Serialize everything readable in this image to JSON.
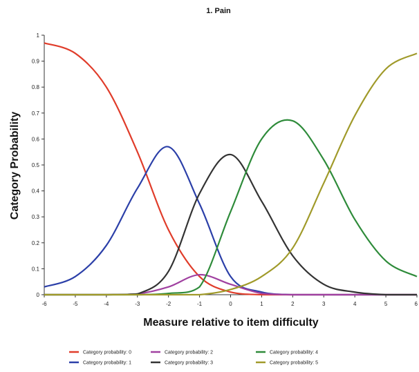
{
  "chart_data": {
    "type": "line",
    "title": "1. Pain",
    "xlabel": "Measure relative to item difficulty",
    "ylabel": "Category Probability",
    "xlim": [
      -6,
      6
    ],
    "ylim": [
      0,
      1
    ],
    "x_ticks": [
      -6,
      -5,
      -4,
      -3,
      -2,
      -1,
      0,
      1,
      2,
      3,
      4,
      5,
      6
    ],
    "y_ticks": [
      0,
      0.1,
      0.2,
      0.3,
      0.4,
      0.5,
      0.6,
      0.7,
      0.8,
      0.9,
      1
    ],
    "grid": false,
    "legend_position": "bottom",
    "x": [
      -6,
      -5,
      -4,
      -3,
      -2,
      -1,
      0,
      1,
      2,
      3,
      4,
      5,
      6
    ],
    "series": [
      {
        "name": "Category probability: 0",
        "color": "#e03c2a",
        "values": [
          0.97,
          0.93,
          0.8,
          0.55,
          0.25,
          0.07,
          0.01,
          0.0,
          0.0,
          0.0,
          0.0,
          0.0,
          0.0
        ]
      },
      {
        "name": "Category probability: 1",
        "color": "#2b3fa8",
        "values": [
          0.03,
          0.07,
          0.19,
          0.41,
          0.57,
          0.35,
          0.07,
          0.01,
          0.0,
          0.0,
          0.0,
          0.0,
          0.0
        ]
      },
      {
        "name": "Category probability: 2",
        "color": "#a040a0",
        "values": [
          0.0,
          0.0,
          0.0,
          0.003,
          0.03,
          0.077,
          0.04,
          0.005,
          0.0,
          0.0,
          0.0,
          0.0,
          0.0
        ]
      },
      {
        "name": "Category probability: 3",
        "color": "#333333",
        "values": [
          0.0,
          0.0,
          0.0,
          0.003,
          0.09,
          0.39,
          0.54,
          0.36,
          0.15,
          0.04,
          0.01,
          0.0,
          0.0
        ]
      },
      {
        "name": "Category probability: 4",
        "color": "#2e8b3a",
        "values": [
          0.0,
          0.0,
          0.0,
          0.0,
          0.005,
          0.03,
          0.32,
          0.6,
          0.67,
          0.52,
          0.29,
          0.13,
          0.07
        ]
      },
      {
        "name": "Category probability: 5",
        "color": "#a09a2a",
        "values": [
          0.0,
          0.0,
          0.0,
          0.0,
          0.0,
          0.0,
          0.02,
          0.07,
          0.18,
          0.43,
          0.69,
          0.87,
          0.93
        ]
      }
    ]
  }
}
